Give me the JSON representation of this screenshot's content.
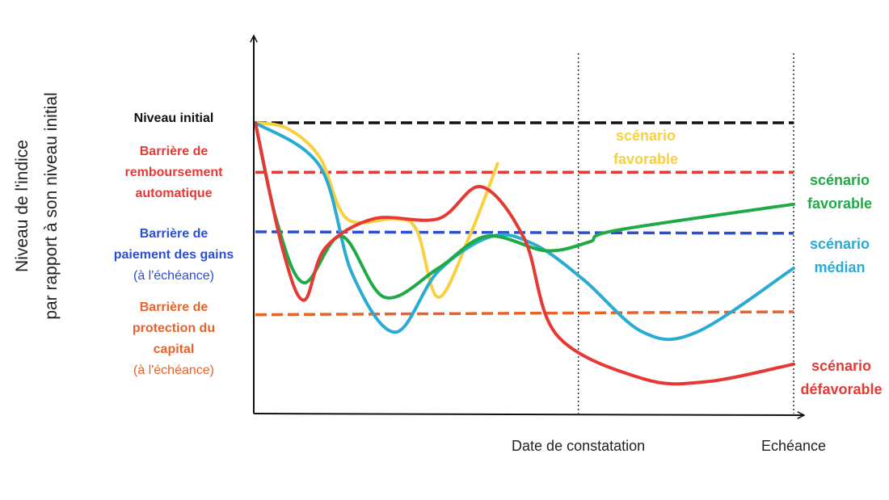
{
  "chart_data": {
    "type": "line",
    "ylabel": [
      "Niveau de l'indice",
      "par rapport à son niveau initial"
    ],
    "x_ticks": [
      {
        "label": "Date de constatation",
        "x": 0.6
      },
      {
        "label": "Echéance",
        "x": 1.0
      }
    ],
    "xlim": [
      0,
      1
    ],
    "ylim": [
      0,
      100
    ],
    "levels": [
      {
        "id": "niveau-initial",
        "lines": [
          "Niveau initial"
        ],
        "sub": "",
        "color": "#111111",
        "y": 100,
        "y_end": 100
      },
      {
        "id": "barriere-remboursement",
        "lines": [
          "Barrière de",
          "remboursement",
          "automatique"
        ],
        "sub": "",
        "color": "#e53935",
        "y": 83,
        "y_end": 83
      },
      {
        "id": "barriere-paiement",
        "lines": [
          "Barrière de",
          "paiement des gains"
        ],
        "sub": "(à l'échéance)",
        "color": "#2a4fd6",
        "y": 62.5,
        "y_end": 62
      },
      {
        "id": "barriere-protection",
        "lines": [
          "Barrière de",
          "protection du",
          "capital"
        ],
        "sub": "(à l'échéance)",
        "color": "#e8622a",
        "y": 34,
        "y_end": 35
      }
    ],
    "series": [
      {
        "id": "jaune",
        "name": "scénario favorable",
        "label_lines": [
          "scénario",
          "favorable"
        ],
        "color": "#f9d03f",
        "points": [
          [
            0,
            100
          ],
          [
            0.06,
            98
          ],
          [
            0.12,
            88
          ],
          [
            0.17,
            67
          ],
          [
            0.26,
            67
          ],
          [
            0.3,
            63
          ],
          [
            0.34,
            40
          ],
          [
            0.4,
            62
          ],
          [
            0.45,
            86
          ]
        ]
      },
      {
        "id": "vert",
        "name": "scénario favorable",
        "label_lines": [
          "scénario",
          "favorable"
        ],
        "color": "#1faa45",
        "points": [
          [
            0,
            100
          ],
          [
            0.04,
            66
          ],
          [
            0.09,
            45
          ],
          [
            0.16,
            61
          ],
          [
            0.24,
            40
          ],
          [
            0.34,
            50
          ],
          [
            0.43,
            61
          ],
          [
            0.54,
            56
          ],
          [
            0.62,
            59
          ],
          [
            0.67,
            63
          ],
          [
            1.0,
            72
          ]
        ]
      },
      {
        "id": "bleu",
        "name": "scénario médian",
        "label_lines": [
          "scénario",
          "médian"
        ],
        "color": "#2aabd2",
        "points": [
          [
            0,
            100
          ],
          [
            0.12,
            85
          ],
          [
            0.18,
            48
          ],
          [
            0.26,
            28
          ],
          [
            0.34,
            49
          ],
          [
            0.44,
            61
          ],
          [
            0.52,
            58
          ],
          [
            0.61,
            46
          ],
          [
            0.72,
            28
          ],
          [
            0.82,
            28
          ],
          [
            1.0,
            50
          ]
        ]
      },
      {
        "id": "rouge",
        "name": "scénario défavorable",
        "label_lines": [
          "scénario",
          "défavorable"
        ],
        "color": "#e53935",
        "points": [
          [
            0,
            100
          ],
          [
            0.05,
            57
          ],
          [
            0.09,
            39
          ],
          [
            0.13,
            57
          ],
          [
            0.22,
            67
          ],
          [
            0.34,
            67
          ],
          [
            0.42,
            78
          ],
          [
            0.5,
            60
          ],
          [
            0.56,
            27
          ],
          [
            0.72,
            12
          ],
          [
            0.84,
            11
          ],
          [
            1.0,
            17
          ]
        ]
      }
    ],
    "grid": false,
    "legend": "none"
  }
}
